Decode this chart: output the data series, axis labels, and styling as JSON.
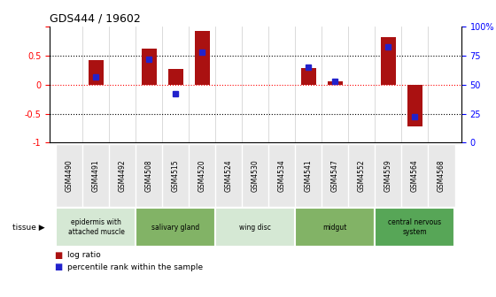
{
  "title": "GDS444 / 19602",
  "samples": [
    "GSM4490",
    "GSM4491",
    "GSM4492",
    "GSM4508",
    "GSM4515",
    "GSM4520",
    "GSM4524",
    "GSM4530",
    "GSM4534",
    "GSM4541",
    "GSM4547",
    "GSM4552",
    "GSM4559",
    "GSM4564",
    "GSM4568"
  ],
  "log_ratio": [
    0.0,
    0.42,
    0.0,
    0.62,
    0.27,
    0.93,
    0.0,
    0.0,
    0.0,
    0.28,
    0.05,
    0.0,
    0.82,
    -0.72,
    0.0
  ],
  "percentile_rank": [
    0.0,
    0.57,
    0.0,
    0.72,
    0.42,
    0.78,
    0.0,
    0.0,
    0.0,
    0.65,
    0.53,
    0.0,
    0.83,
    0.22,
    0.0
  ],
  "bar_color": "#aa1111",
  "dot_color": "#2222cc",
  "ylim": [
    -1,
    1
  ],
  "yticks_left": [
    -1,
    -0.5,
    0,
    0.5,
    1
  ],
  "yticks_left_labels": [
    "-1",
    "-0.5",
    "0",
    "0.5",
    ""
  ],
  "yticks_right_vals": [
    0.0,
    0.25,
    0.5,
    0.75,
    1.0
  ],
  "yticks_right_labels": [
    "0",
    "25",
    "50",
    "75",
    "100%"
  ],
  "tissue_groups": [
    {
      "label": "epidermis with\nattached muscle",
      "start": 0,
      "end": 3,
      "color": "#d5e8d4"
    },
    {
      "label": "salivary gland",
      "start": 3,
      "end": 6,
      "color": "#82b366"
    },
    {
      "label": "wing disc",
      "start": 6,
      "end": 9,
      "color": "#d5e8d4"
    },
    {
      "label": "midgut",
      "start": 9,
      "end": 12,
      "color": "#82b366"
    },
    {
      "label": "central nervous\nsystem",
      "start": 12,
      "end": 15,
      "color": "#57a657"
    }
  ],
  "legend_entries": [
    "log ratio",
    "percentile rank within the sample"
  ],
  "legend_colors": [
    "#aa1111",
    "#2222cc"
  ],
  "bar_width": 0.55,
  "dot_size": 4
}
